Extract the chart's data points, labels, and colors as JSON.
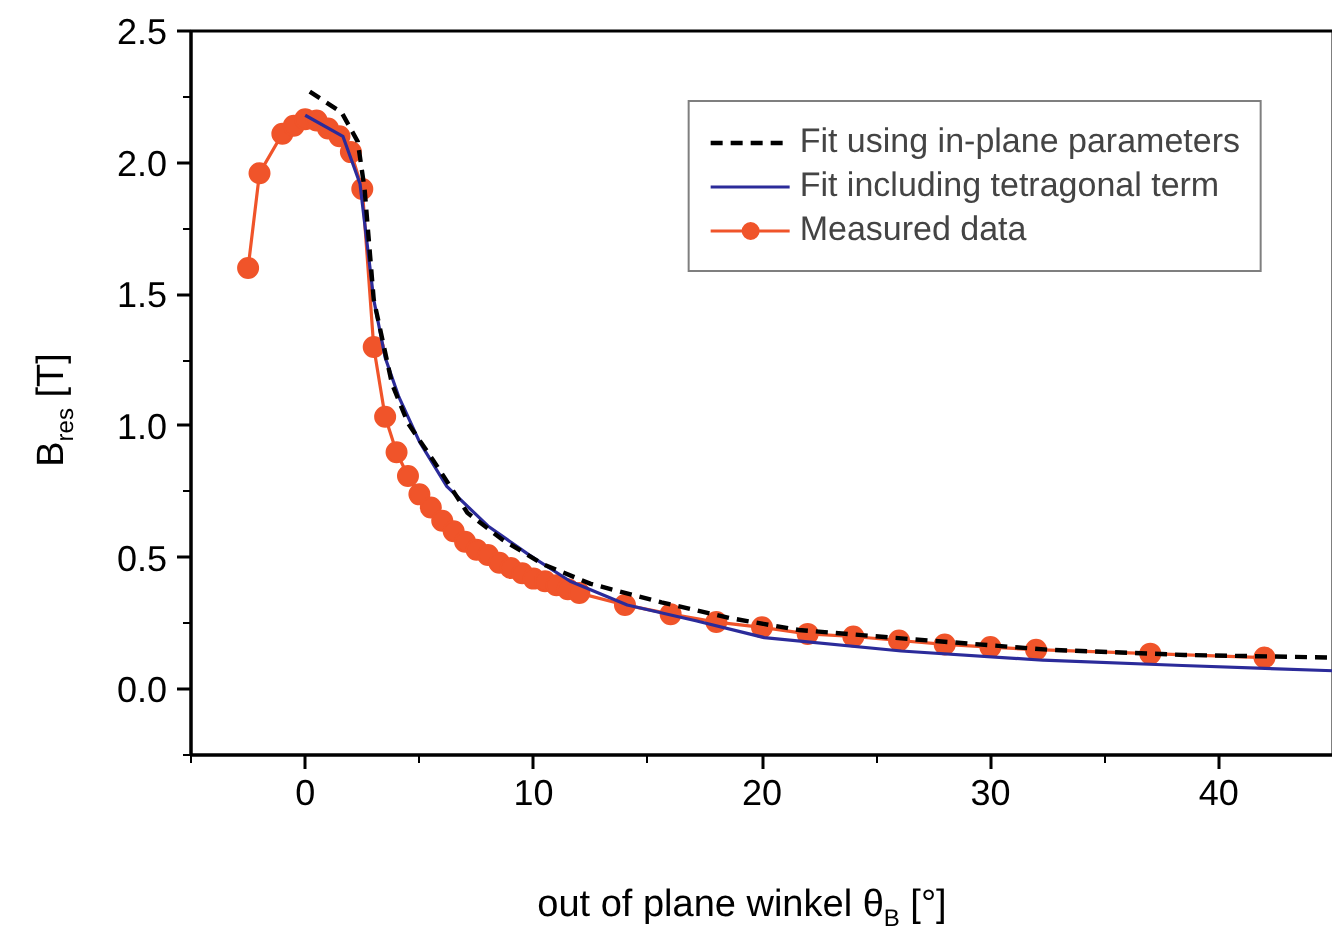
{
  "chart_data": {
    "type": "line",
    "xlabel": "out of plane winkel θ$_{B}$ [°]",
    "ylabel": "B$_{res}$ [T]",
    "xlim": [
      -5,
      45
    ],
    "ylim": [
      -0.25,
      2.5
    ],
    "xticks": [
      0,
      10,
      20,
      30,
      40
    ],
    "yticks": [
      {
        "value": 0,
        "label": "0.0"
      },
      0.5,
      {
        "value": 1,
        "label": "1.0"
      },
      1.5,
      {
        "value": 2,
        "label": "2.0"
      },
      2.5
    ],
    "grid": false,
    "legend": "top right",
    "series": [
      {
        "name": "Fit using in-plane parameters",
        "color": "#000000",
        "line_style": "dashed",
        "marker": "none",
        "x": [
          0.2,
          1.6,
          2.3,
          2.6,
          3.0,
          3.8,
          4.5,
          5.6,
          7.1,
          8.6,
          10.4,
          12.5,
          15.6,
          18.6,
          21.6,
          25.8,
          32.5,
          38.5,
          45
        ],
        "values": [
          2.27,
          2.19,
          2.08,
          1.9,
          1.48,
          1.16,
          1.01,
          0.87,
          0.67,
          0.57,
          0.475,
          0.4,
          0.33,
          0.27,
          0.225,
          0.195,
          0.15,
          0.13,
          0.12
        ]
      },
      {
        "name": "Fit including tetragonal term",
        "color": "#2b2b9a",
        "line_style": "solid",
        "marker": "none",
        "x": [
          0,
          1.65,
          2.4,
          2.7,
          3.0,
          3.5,
          4.1,
          5.0,
          6.2,
          8.0,
          9.8,
          11.6,
          14.1,
          17.1,
          20.1,
          26.1,
          32.3,
          38.4,
          45
        ],
        "values": [
          2.18,
          2.1,
          1.92,
          1.7,
          1.48,
          1.26,
          1.11,
          0.94,
          0.77,
          0.62,
          0.51,
          0.41,
          0.32,
          0.26,
          0.196,
          0.145,
          0.11,
          0.09,
          0.07
        ]
      },
      {
        "name": "Measured data",
        "color": "#f0542a",
        "line_style": "solid",
        "marker": "circle",
        "x": [
          -2.5,
          -2,
          -1,
          -0.5,
          0,
          0.5,
          1,
          1.5,
          2,
          2.5,
          3,
          3.5,
          4,
          4.5,
          5,
          5.5,
          6,
          6.5,
          7,
          7.5,
          8,
          8.5,
          9,
          9.5,
          10,
          10.5,
          11,
          11.5,
          12,
          14,
          16,
          18,
          20,
          22,
          24,
          26,
          28,
          30,
          32,
          37,
          42
        ],
        "values": [
          1.6,
          1.96,
          2.11,
          2.14,
          2.165,
          2.16,
          2.13,
          2.1,
          2.04,
          1.9,
          1.3,
          1.035,
          0.9,
          0.81,
          0.74,
          0.69,
          0.64,
          0.6,
          0.56,
          0.53,
          0.51,
          0.48,
          0.46,
          0.44,
          0.42,
          0.41,
          0.395,
          0.38,
          0.365,
          0.32,
          0.285,
          0.255,
          0.235,
          0.21,
          0.2,
          0.185,
          0.17,
          0.16,
          0.15,
          0.135,
          0.12
        ]
      }
    ]
  }
}
